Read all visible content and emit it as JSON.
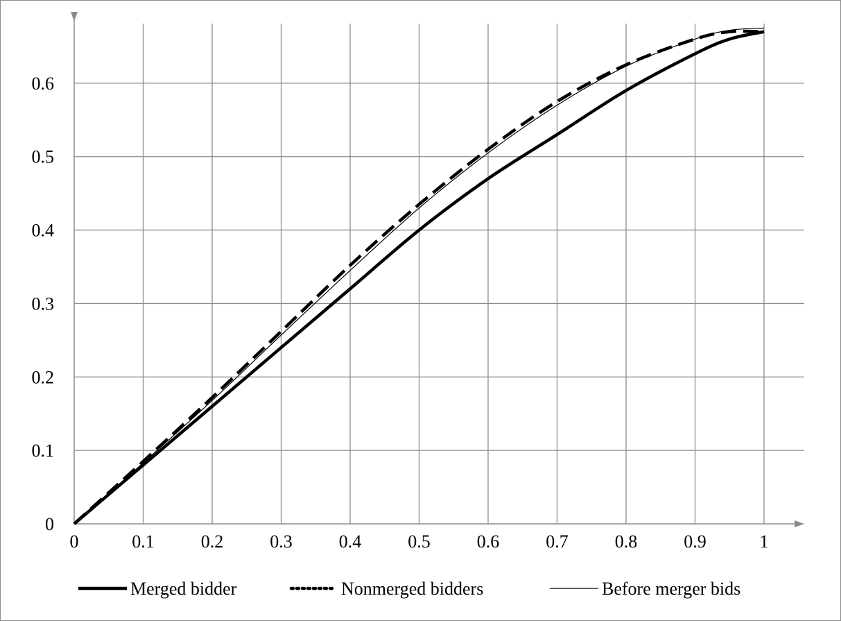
{
  "chart_data": {
    "type": "line",
    "title": "",
    "xlabel": "",
    "ylabel": "",
    "xlim": [
      0,
      1
    ],
    "ylim": [
      0,
      0.7
    ],
    "grid": true,
    "legend_position": "bottom",
    "x_ticks": [
      "0",
      "0.1",
      "0.2",
      "0.3",
      "0.4",
      "0.5",
      "0.6",
      "0.7",
      "0.8",
      "0.9",
      "1"
    ],
    "y_ticks": [
      "0",
      "0.1",
      "0.2",
      "0.3",
      "0.4",
      "0.5",
      "0.6"
    ],
    "x": [
      0,
      0.1,
      0.2,
      0.3,
      0.4,
      0.5,
      0.6,
      0.7,
      0.8,
      0.9,
      0.95,
      1.0
    ],
    "series": [
      {
        "name": "Merged bidder",
        "style": "thick-solid",
        "color": "#000000",
        "values": [
          0,
          0.08,
          0.16,
          0.24,
          0.32,
          0.4,
          0.47,
          0.53,
          0.59,
          0.64,
          0.66,
          0.67
        ]
      },
      {
        "name": "Nonmerged bidders",
        "style": "dashed",
        "color": "#000000",
        "values": [
          0,
          0.085,
          0.172,
          0.262,
          0.352,
          0.435,
          0.51,
          0.575,
          0.625,
          0.66,
          0.67,
          0.67
        ]
      },
      {
        "name": "Before merger bids",
        "style": "thin-solid",
        "color": "#000000",
        "values": [
          0,
          0.083,
          0.168,
          0.257,
          0.345,
          0.43,
          0.505,
          0.57,
          0.623,
          0.66,
          0.672,
          0.675
        ]
      }
    ]
  }
}
